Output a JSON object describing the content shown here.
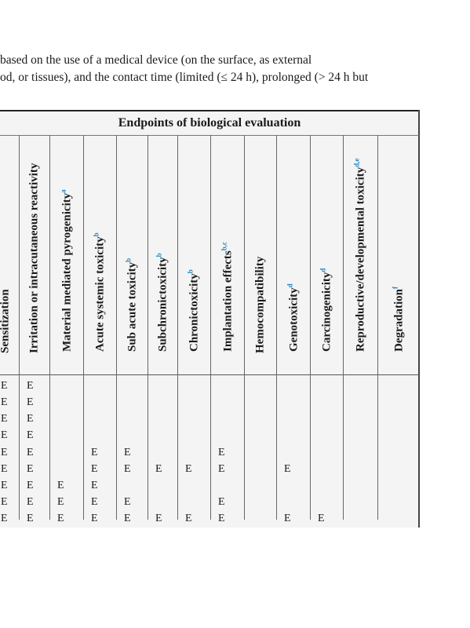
{
  "intro": {
    "line1": "based on the use of a medical device (on the surface, as external",
    "line2": "od, or tissues), and the contact time (limited (≤ 24 h), prolonged (> 24 h but"
  },
  "table": {
    "group_title": "Endpoints of biological evaluation",
    "columns": [
      {
        "label": "Sensitization",
        "sup": ""
      },
      {
        "label": "Irritation or intracutaneous reactivity",
        "sup": ""
      },
      {
        "label": "Material mediated pyrogenicity",
        "sup": "a"
      },
      {
        "label": "Acute systemic toxicity",
        "sup": "b"
      },
      {
        "label": "Sub acute toxicity",
        "sup": "b"
      },
      {
        "label": "Subchronictoxicity",
        "sup": "b"
      },
      {
        "label": "Chronictoxicity",
        "sup": "b"
      },
      {
        "label": "Implantation effects",
        "sup": "b,c"
      },
      {
        "label": "Hemocompatibility",
        "sup": ""
      },
      {
        "label": "Genotoxicity",
        "sup": "d"
      },
      {
        "label": "Carcinogenicity",
        "sup": "d"
      },
      {
        "label": "Reproductive/developmental toxicity",
        "sup": "d,e"
      },
      {
        "label": "Degradation",
        "sup": "f"
      }
    ],
    "rows": [
      [
        "E",
        "E",
        "",
        "",
        "",
        "",
        "",
        "",
        "",
        "",
        "",
        "",
        ""
      ],
      [
        "E",
        "E",
        "",
        "",
        "",
        "",
        "",
        "",
        "",
        "",
        "",
        "",
        ""
      ],
      [
        "E",
        "E",
        "",
        "",
        "",
        "",
        "",
        "",
        "",
        "",
        "",
        "",
        ""
      ],
      [
        "E",
        "E",
        "",
        "",
        "",
        "",
        "",
        "",
        "",
        "",
        "",
        "",
        ""
      ],
      [
        "E",
        "E",
        "",
        "E",
        "E",
        "",
        "",
        "E",
        "",
        "",
        "",
        "",
        ""
      ],
      [
        "E",
        "E",
        "",
        "E",
        "E",
        "E",
        "E",
        "E",
        "",
        "E",
        "",
        "",
        ""
      ],
      [
        "E",
        "E",
        "E",
        "E",
        "",
        "",
        "",
        "",
        "",
        "",
        "",
        "",
        ""
      ],
      [
        "E",
        "E",
        "E",
        "E",
        "E",
        "",
        "",
        "E",
        "",
        "",
        "",
        "",
        ""
      ],
      [
        "E",
        "E",
        "E",
        "E",
        "E",
        "E",
        "E",
        "E",
        "",
        "E",
        "E",
        "",
        ""
      ]
    ]
  }
}
